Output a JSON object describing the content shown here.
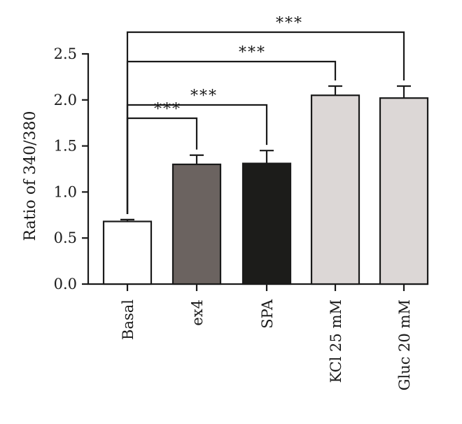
{
  "chart_data": {
    "type": "bar",
    "title": "",
    "xlabel": "",
    "ylabel": "Ratio of 340/380",
    "ylim": [
      0,
      2.5
    ],
    "yticks": [
      "0.0",
      "0.5",
      "1.0",
      "1.5",
      "2.0",
      "2.5"
    ],
    "categories": [
      "Basal",
      "ex4",
      "SPA",
      "KCl 25 mM",
      "Gluc 20 mM"
    ],
    "values": [
      0.68,
      1.3,
      1.31,
      2.05,
      2.02
    ],
    "errors": [
      0.02,
      0.1,
      0.14,
      0.1,
      0.13
    ],
    "bar_colors": [
      "#ffffff",
      "#6b6360",
      "#1c1c1a",
      "#dcd7d6",
      "#dcd7d6"
    ],
    "grid": false,
    "significance": [
      {
        "from": "Basal",
        "to": "ex4",
        "label": "***"
      },
      {
        "from": "Basal",
        "to": "SPA",
        "label": "***"
      },
      {
        "from": "Basal",
        "to": "KCl 25 mM",
        "label": "***"
      },
      {
        "from": "Basal",
        "to": "Gluc 20 mM",
        "label": "***"
      }
    ]
  }
}
